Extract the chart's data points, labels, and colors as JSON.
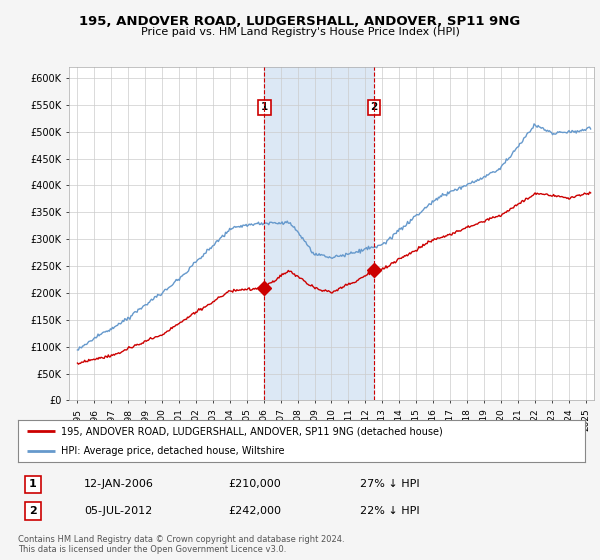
{
  "title": "195, ANDOVER ROAD, LUDGERSHALL, ANDOVER, SP11 9NG",
  "subtitle": "Price paid vs. HM Land Registry's House Price Index (HPI)",
  "ylabel_ticks": [
    "£0",
    "£50K",
    "£100K",
    "£150K",
    "£200K",
    "£250K",
    "£300K",
    "£350K",
    "£400K",
    "£450K",
    "£500K",
    "£550K",
    "£600K"
  ],
  "ytick_values": [
    0,
    50000,
    100000,
    150000,
    200000,
    250000,
    300000,
    350000,
    400000,
    450000,
    500000,
    550000,
    600000
  ],
  "ylim": [
    0,
    620000
  ],
  "hpi_color": "#6699cc",
  "price_color": "#cc0000",
  "marker_color": "#cc0000",
  "background_color": "#f5f5f5",
  "plot_bg": "#ffffff",
  "shade_color": "#dce8f5",
  "transaction1": {
    "date": "12-JAN-2006",
    "price": 210000,
    "label": "1",
    "pct": "27% ↓ HPI"
  },
  "transaction2": {
    "date": "05-JUL-2012",
    "price": 242000,
    "label": "2",
    "pct": "22% ↓ HPI"
  },
  "vline1_x": 2006.04,
  "vline2_x": 2012.51,
  "legend_line1": "195, ANDOVER ROAD, LUDGERSHALL, ANDOVER, SP11 9NG (detached house)",
  "legend_line2": "HPI: Average price, detached house, Wiltshire",
  "footer": "Contains HM Land Registry data © Crown copyright and database right 2024.\nThis data is licensed under the Open Government Licence v3.0.",
  "xlim_start": 1994.5,
  "xlim_end": 2025.5,
  "xtick_years": [
    1995,
    1996,
    1997,
    1998,
    1999,
    2000,
    2001,
    2002,
    2003,
    2004,
    2005,
    2006,
    2007,
    2008,
    2009,
    2010,
    2011,
    2012,
    2013,
    2014,
    2015,
    2016,
    2017,
    2018,
    2019,
    2020,
    2021,
    2022,
    2023,
    2024,
    2025
  ]
}
